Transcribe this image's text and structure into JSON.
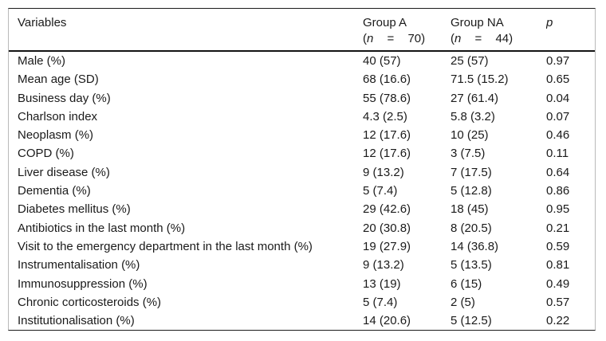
{
  "table": {
    "header": {
      "variables": "Variables",
      "group_a": {
        "title": "Group A",
        "paren": "(",
        "n": "n",
        "eq": "=",
        "count": "70)"
      },
      "group_na": {
        "title": "Group NA",
        "paren": "(",
        "n": "n",
        "eq": "=",
        "count": "44)"
      },
      "p": "p"
    },
    "rows": [
      {
        "variable": "Male (%)",
        "group_a": "40 (57)",
        "group_na": "25 (57)",
        "p": "0.97"
      },
      {
        "variable": "Mean age (SD)",
        "group_a": "68 (16.6)",
        "group_na": "71.5 (15.2)",
        "p": "0.65"
      },
      {
        "variable": "Business day (%)",
        "group_a": "55 (78.6)",
        "group_na": "27 (61.4)",
        "p": "0.04"
      },
      {
        "variable": "Charlson index",
        "group_a": "4.3 (2.5)",
        "group_na": "5.8 (3.2)",
        "p": "0.07"
      },
      {
        "variable": "Neoplasm (%)",
        "group_a": "12 (17.6)",
        "group_na": "10 (25)",
        "p": "0.46"
      },
      {
        "variable": "COPD (%)",
        "group_a": "12 (17.6)",
        "group_na": "3 (7.5)",
        "p": "0.11"
      },
      {
        "variable": "Liver disease (%)",
        "group_a": "9 (13.2)",
        "group_na": "7 (17.5)",
        "p": "0.64"
      },
      {
        "variable": "Dementia (%)",
        "group_a": "5 (7.4)",
        "group_na": "5 (12.8)",
        "p": "0.86"
      },
      {
        "variable": "Diabetes mellitus (%)",
        "group_a": "29 (42.6)",
        "group_na": "18 (45)",
        "p": "0.95"
      },
      {
        "variable": "Antibiotics in the last month (%)",
        "group_a": "20 (30.8)",
        "group_na": "8 (20.5)",
        "p": "0.21"
      },
      {
        "variable": "Visit to the emergency department in the last month (%)",
        "group_a": "19 (27.9)",
        "group_na": "14 (36.8)",
        "p": "0.59"
      },
      {
        "variable": "Instrumentalisation (%)",
        "group_a": "9 (13.2)",
        "group_na": "5 (13.5)",
        "p": "0.81"
      },
      {
        "variable": "Immunosuppression (%)",
        "group_a": "13 (19)",
        "group_na": "6 (15)",
        "p": "0.49"
      },
      {
        "variable": "Chronic corticosteroids (%)",
        "group_a": "5 (7.4)",
        "group_na": "2 (5)",
        "p": "0.57"
      },
      {
        "variable": "Institutionalisation (%)",
        "group_a": "14 (20.6)",
        "group_na": "5 (12.5)",
        "p": "0.22"
      }
    ]
  },
  "colors": {
    "text": "#1a1a1a",
    "rule_dark": "#141414",
    "rule_light_gray": "#b9b9b9",
    "background": "#ffffff"
  }
}
